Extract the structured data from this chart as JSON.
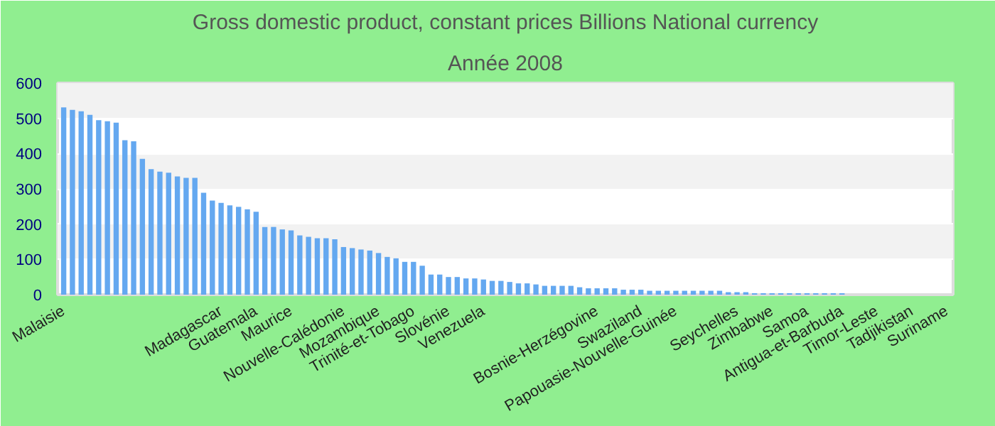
{
  "chart_data": {
    "type": "bar",
    "title": "Gross domestic product, constant prices Billions National currency",
    "subtitle": "Année 2008",
    "categories": [
      "Malaisie",
      null,
      null,
      null,
      null,
      null,
      null,
      null,
      null,
      null,
      null,
      null,
      null,
      null,
      null,
      null,
      null,
      null,
      "Madagascar",
      null,
      null,
      null,
      "Guatemala",
      null,
      null,
      null,
      "Maurice",
      null,
      null,
      null,
      null,
      null,
      "Nouvelle-Calédonie",
      null,
      null,
      null,
      "Mozambique",
      null,
      null,
      null,
      "Trinité-et-Tobago",
      null,
      null,
      null,
      "Slovénie",
      null,
      null,
      null,
      "Venezuela",
      null,
      null,
      null,
      null,
      null,
      null,
      null,
      null,
      null,
      null,
      null,
      null,
      "Bosnie-Herzégovine",
      null,
      null,
      null,
      null,
      "Swaziland",
      null,
      null,
      null,
      "Papouasie-Nouvelle-Guinée",
      null,
      null,
      null,
      null,
      null,
      null,
      "Seychelles",
      null,
      null,
      null,
      "Zimbabwe",
      null,
      null,
      null,
      "Samoa",
      null,
      null,
      null,
      "Antigua-et-Barbuda",
      null,
      null,
      null,
      "Timor-Leste",
      null,
      null,
      null,
      "Tadjikistan",
      null,
      null,
      null,
      "Suriname"
    ],
    "values": [
      531,
      524,
      520,
      510,
      495,
      492,
      488,
      438,
      435,
      385,
      356,
      349,
      346,
      335,
      331,
      331,
      289,
      267,
      260,
      253,
      249,
      242,
      235,
      192,
      192,
      185,
      182,
      168,
      164,
      160,
      160,
      157,
      135,
      132,
      128,
      125,
      118,
      107,
      103,
      93,
      93,
      82,
      57,
      57,
      50,
      50,
      46,
      46,
      43,
      39,
      39,
      36,
      32,
      32,
      29,
      25,
      25,
      25,
      25,
      21,
      18,
      18,
      18,
      18,
      14,
      14,
      14,
      11,
      11,
      11,
      11,
      11,
      11,
      11,
      11,
      11,
      7,
      7,
      7,
      4,
      4,
      4,
      4,
      4,
      4,
      4,
      4,
      4,
      4,
      4,
      null,
      null,
      null,
      null,
      null,
      null,
      null,
      null,
      null,
      null,
      null,
      null
    ],
    "color": "#64a8f0",
    "ylim": [
      0,
      600
    ],
    "yticks": [
      0,
      100,
      200,
      300,
      400,
      500,
      600
    ],
    "grid": "y"
  }
}
